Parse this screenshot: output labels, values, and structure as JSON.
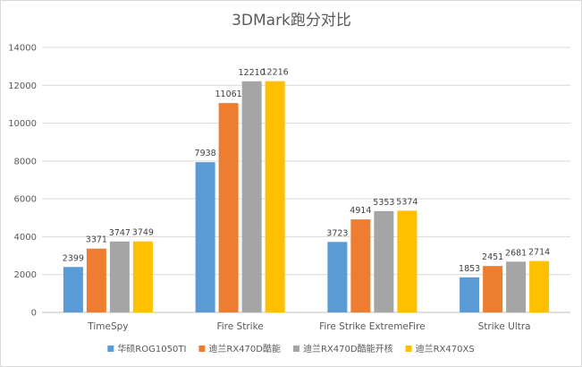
{
  "chart_data": {
    "type": "bar",
    "title": "3DMark跑分对比",
    "xlabel": "",
    "ylabel": "",
    "categories": [
      "TimeSpy",
      "Fire Strike",
      "Fire Strike ExtremeFire",
      "Strike Ultra"
    ],
    "series": [
      {
        "name": "华硕ROG1050TI",
        "values": [
          2399,
          7938,
          3723,
          1853
        ],
        "color": "#5b9bd5"
      },
      {
        "name": "迪兰RX470D酷能",
        "values": [
          3371,
          11061,
          4914,
          2451
        ],
        "color": "#ed7d31"
      },
      {
        "name": "迪兰RX470D酷能开核",
        "values": [
          3747,
          12210,
          5353,
          2681
        ],
        "color": "#a5a5a5"
      },
      {
        "name": "迪兰RX470XS",
        "values": [
          3749,
          12216,
          5374,
          2714
        ],
        "color": "#ffc000"
      }
    ],
    "ylim": [
      0,
      14000
    ],
    "yticks": [
      0,
      2000,
      4000,
      6000,
      8000,
      10000,
      12000,
      14000
    ],
    "grid": true,
    "legend_position": "bottom"
  }
}
